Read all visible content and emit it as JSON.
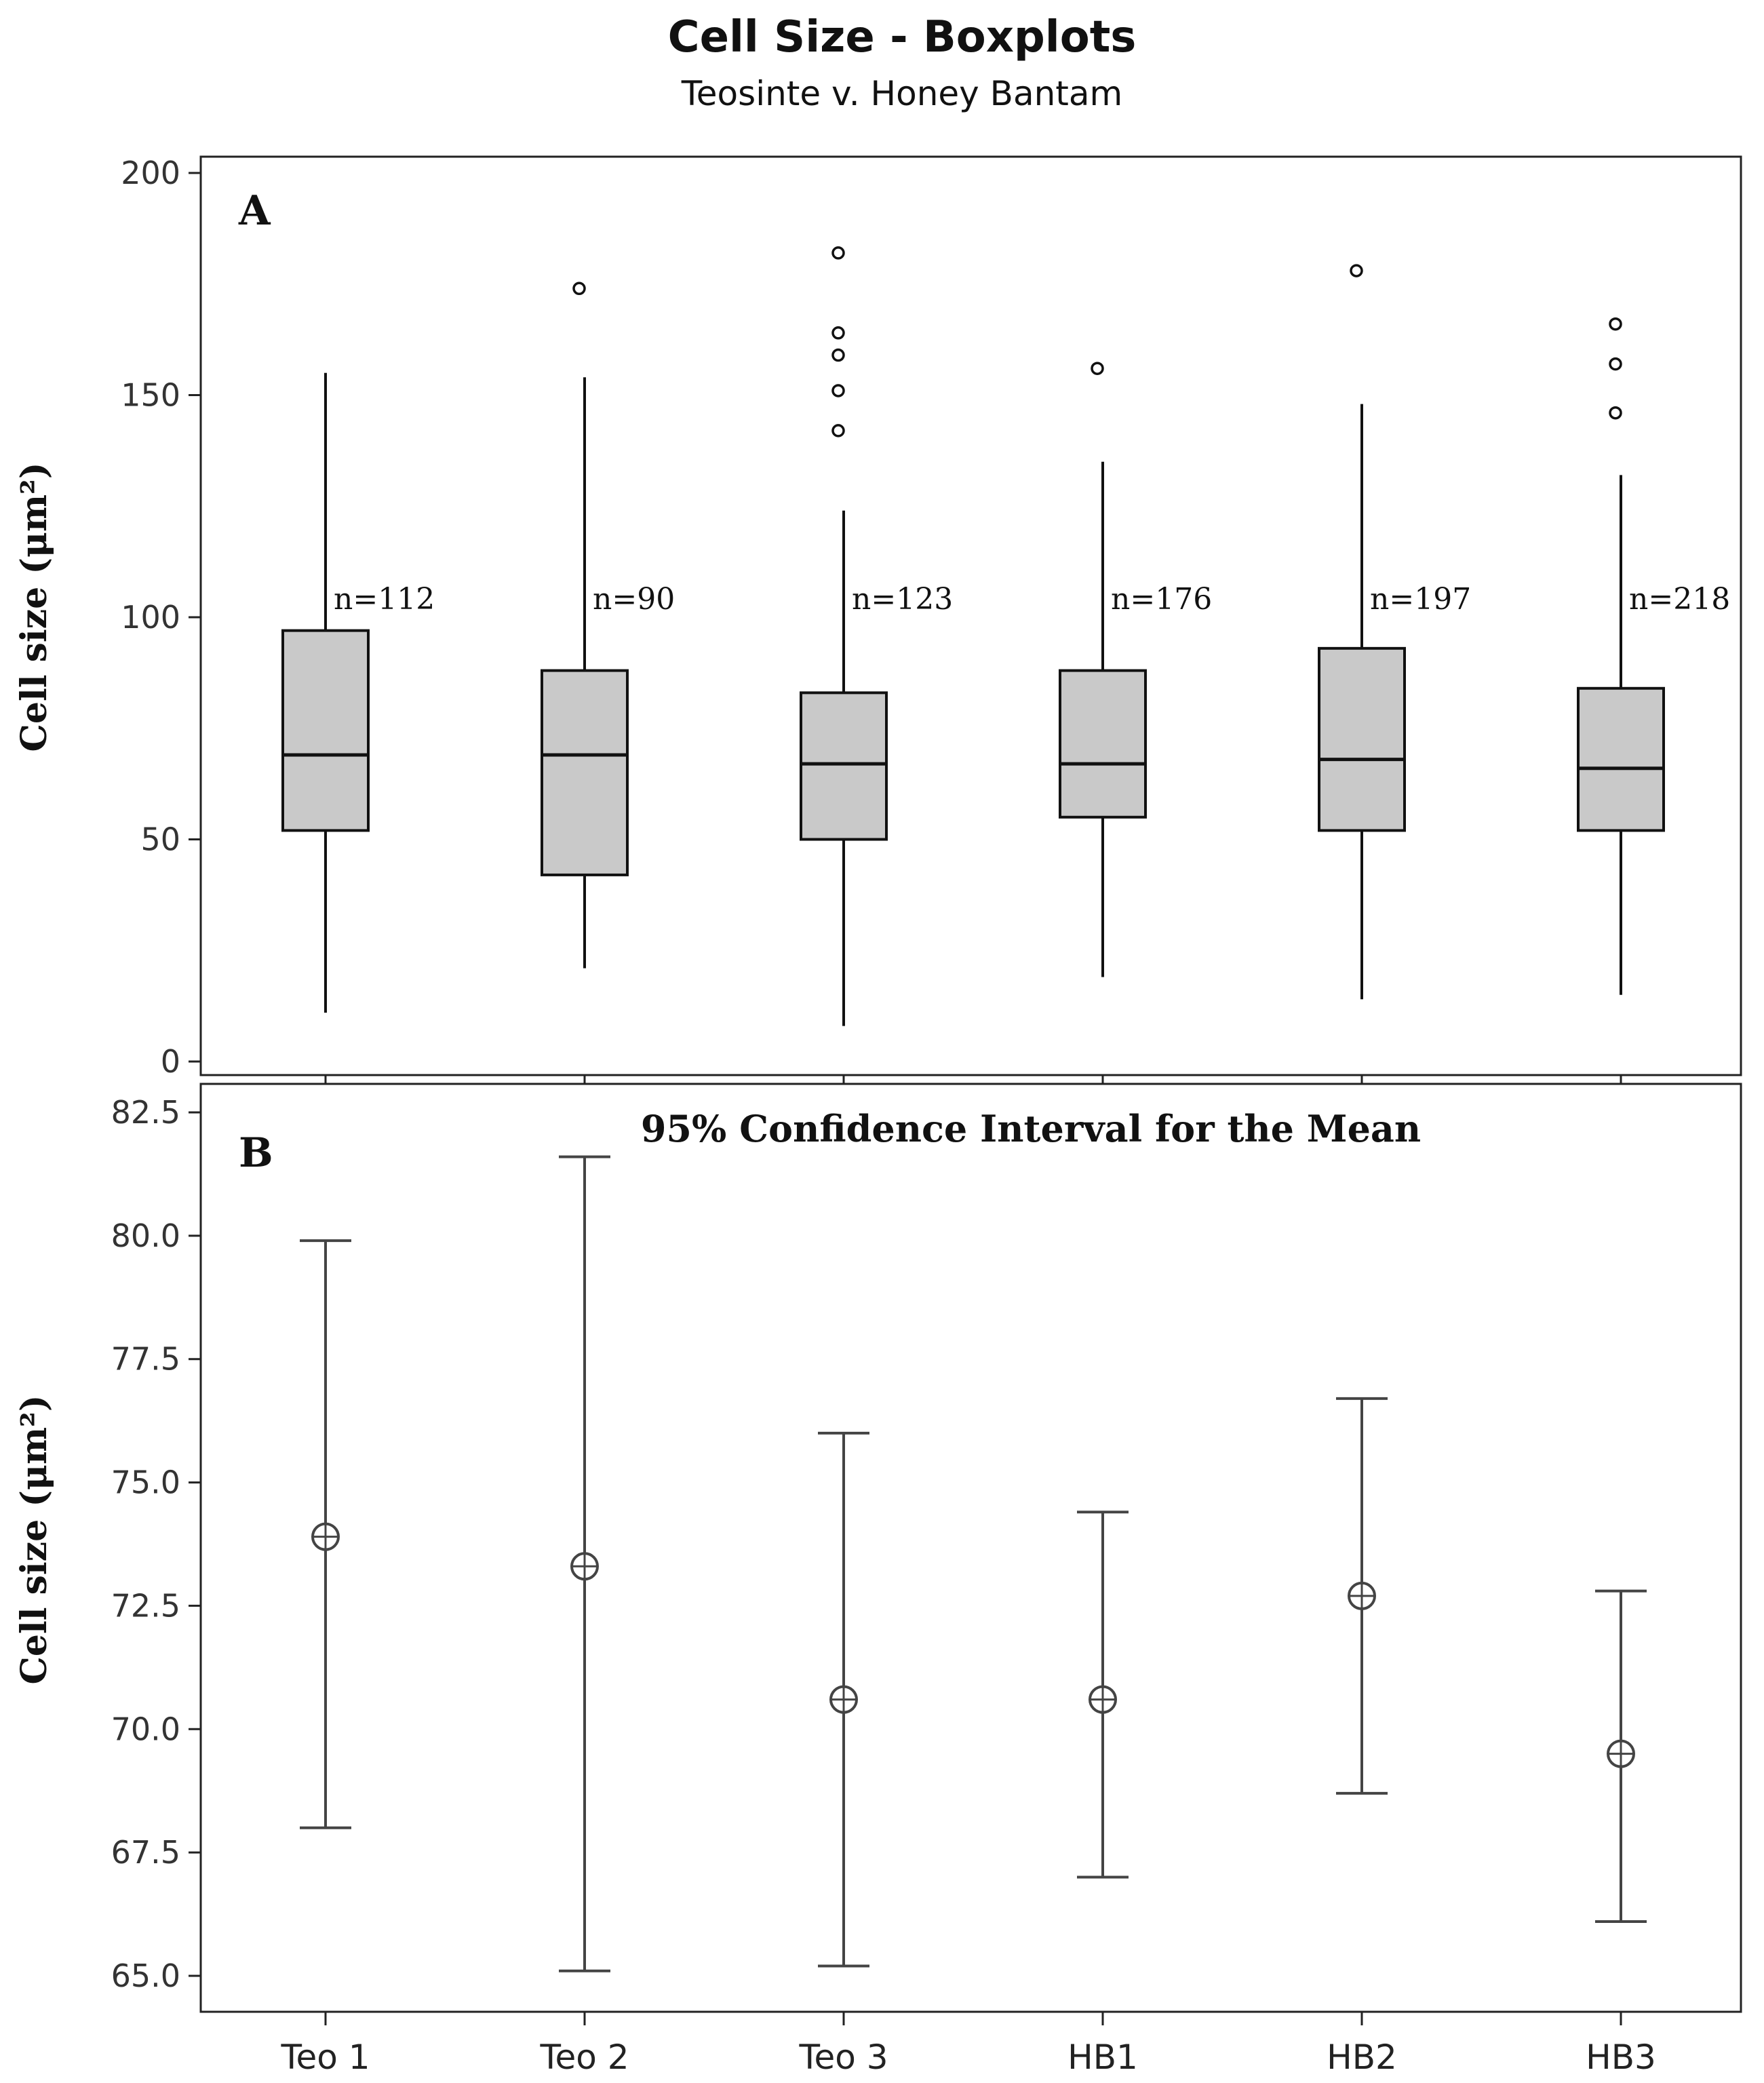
{
  "figure": {
    "title": "Cell Size - Boxplots",
    "subtitle": "Teosinte v. Honey Bantam"
  },
  "chart_data": [
    {
      "type": "box",
      "panel": "A",
      "ylabel": "Cell size (μm²)",
      "ylim": [
        0,
        200
      ],
      "yticks": [
        "0",
        "50",
        "100",
        "150",
        "200"
      ],
      "ytick_values": [
        0,
        50,
        100,
        150,
        200
      ],
      "categories": [
        "Teo 1",
        "Teo 2",
        "Teo 3",
        "HB1",
        "HB2",
        "HB3"
      ],
      "boxes": [
        {
          "category": "Teo 1",
          "whisker_low": 11,
          "q1": 52,
          "median": 69,
          "q3": 97,
          "whisker_high": 155,
          "outliers": [],
          "n_label": "n=112"
        },
        {
          "category": "Teo 2",
          "whisker_low": 21,
          "q1": 42,
          "median": 69,
          "q3": 88,
          "whisker_high": 154,
          "outliers": [
            174
          ],
          "n_label": "n=90"
        },
        {
          "category": "Teo 3",
          "whisker_low": 8,
          "q1": 50,
          "median": 67,
          "q3": 83,
          "whisker_high": 124,
          "outliers": [
            182,
            164,
            159,
            151,
            142
          ],
          "n_label": "n=123"
        },
        {
          "category": "HB1",
          "whisker_low": 19,
          "q1": 55,
          "median": 67,
          "q3": 88,
          "whisker_high": 135,
          "outliers": [
            156
          ],
          "n_label": "n=176"
        },
        {
          "category": "HB2",
          "whisker_low": 14,
          "q1": 52,
          "median": 68,
          "q3": 93,
          "whisker_high": 148,
          "outliers": [
            178
          ],
          "n_label": "n=197"
        },
        {
          "category": "HB3",
          "whisker_low": 15,
          "q1": 52,
          "median": 66,
          "q3": 84,
          "whisker_high": 132,
          "outliers": [
            166,
            157,
            146
          ],
          "n_label": "n=218"
        }
      ]
    },
    {
      "type": "interval",
      "panel": "B",
      "title": "95% Confidence Interval for the Mean",
      "ylabel": "Cell size (μm²)",
      "ylim": [
        65.0,
        82.5
      ],
      "yticks": [
        "65.0",
        "67.5",
        "70.0",
        "72.5",
        "75.0",
        "77.5",
        "80.0",
        "82.5"
      ],
      "ytick_values": [
        65.0,
        67.5,
        70.0,
        72.5,
        75.0,
        77.5,
        80.0,
        82.5
      ],
      "categories": [
        "Teo 1",
        "Teo 2",
        "Teo 3",
        "HB1",
        "HB2",
        "HB3"
      ],
      "intervals": [
        {
          "category": "Teo 1",
          "mean": 73.9,
          "lower": 68.0,
          "upper": 79.9
        },
        {
          "category": "Teo 2",
          "mean": 73.3,
          "lower": 65.1,
          "upper": 81.6
        },
        {
          "category": "Teo 3",
          "mean": 70.6,
          "lower": 65.2,
          "upper": 76.0
        },
        {
          "category": "HB1",
          "mean": 70.6,
          "lower": 67.0,
          "upper": 74.4
        },
        {
          "category": "HB2",
          "mean": 72.7,
          "lower": 68.7,
          "upper": 76.7
        },
        {
          "category": "HB3",
          "mean": 69.5,
          "lower": 66.1,
          "upper": 72.8
        }
      ]
    }
  ]
}
